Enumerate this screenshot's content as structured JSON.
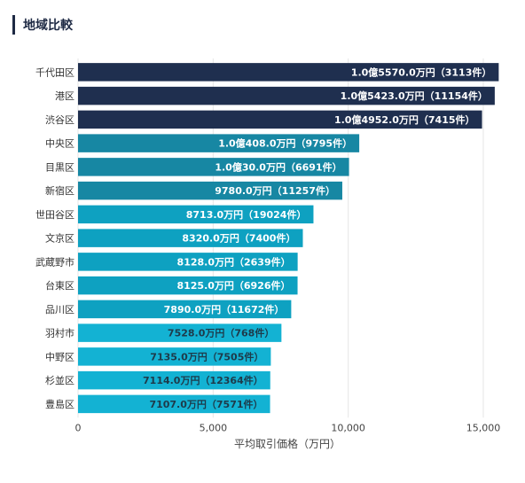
{
  "header": {
    "title": "地域比較"
  },
  "chart_data": {
    "type": "bar",
    "orientation": "horizontal",
    "categories": [
      "千代田区",
      "港区",
      "渋谷区",
      "中央区",
      "目黒区",
      "新宿区",
      "世田谷区",
      "文京区",
      "武蔵野市",
      "台東区",
      "品川区",
      "羽村市",
      "中野区",
      "杉並区",
      "豊島区"
    ],
    "values": [
      15570,
      15423,
      14952,
      10408,
      10030,
      9780,
      8713,
      8320,
      8128,
      8125,
      7890,
      7528,
      7135,
      7114,
      7107
    ],
    "labels": [
      "1.0億5570.0万円（3113件）",
      "1.0億5423.0万円（11154件）",
      "1.0億4952.0万円（7415件）",
      "1.0億408.0万円（9795件）",
      "1.0億30.0万円（6691件）",
      "9780.0万円（11257件）",
      "8713.0万円（19024件）",
      "8320.0万円（7400件）",
      "8128.0万円（2639件）",
      "8125.0万円（6926件）",
      "7890.0万円（11672件）",
      "7528.0万円（768件）",
      "7135.0万円（7505件）",
      "7114.0万円（12364件）",
      "7107.0万円（7571件）"
    ],
    "colors": [
      "#1f2f4f",
      "#1f2f4f",
      "#1f2f4f",
      "#1787a3",
      "#1787a3",
      "#1787a3",
      "#0ea1c1",
      "#0ea1c1",
      "#0ea1c1",
      "#0ea1c1",
      "#0ea1c1",
      "#13b2d3",
      "#13b2d3",
      "#13b2d3",
      "#13b2d3"
    ],
    "label_colors": [
      "#ffffff",
      "#ffffff",
      "#ffffff",
      "#ffffff",
      "#ffffff",
      "#ffffff",
      "#ffffff",
      "#ffffff",
      "#ffffff",
      "#ffffff",
      "#ffffff",
      "#1e3a4a",
      "#1e3a4a",
      "#1e3a4a",
      "#1e3a4a"
    ],
    "xticks": [
      0,
      5000,
      10000,
      15000
    ],
    "xtick_labels": [
      "0",
      "5,000",
      "10,000",
      "15,000"
    ],
    "xlim": [
      0,
      15000
    ],
    "xlabel": "平均取引価格（万円）",
    "grid": true
  }
}
